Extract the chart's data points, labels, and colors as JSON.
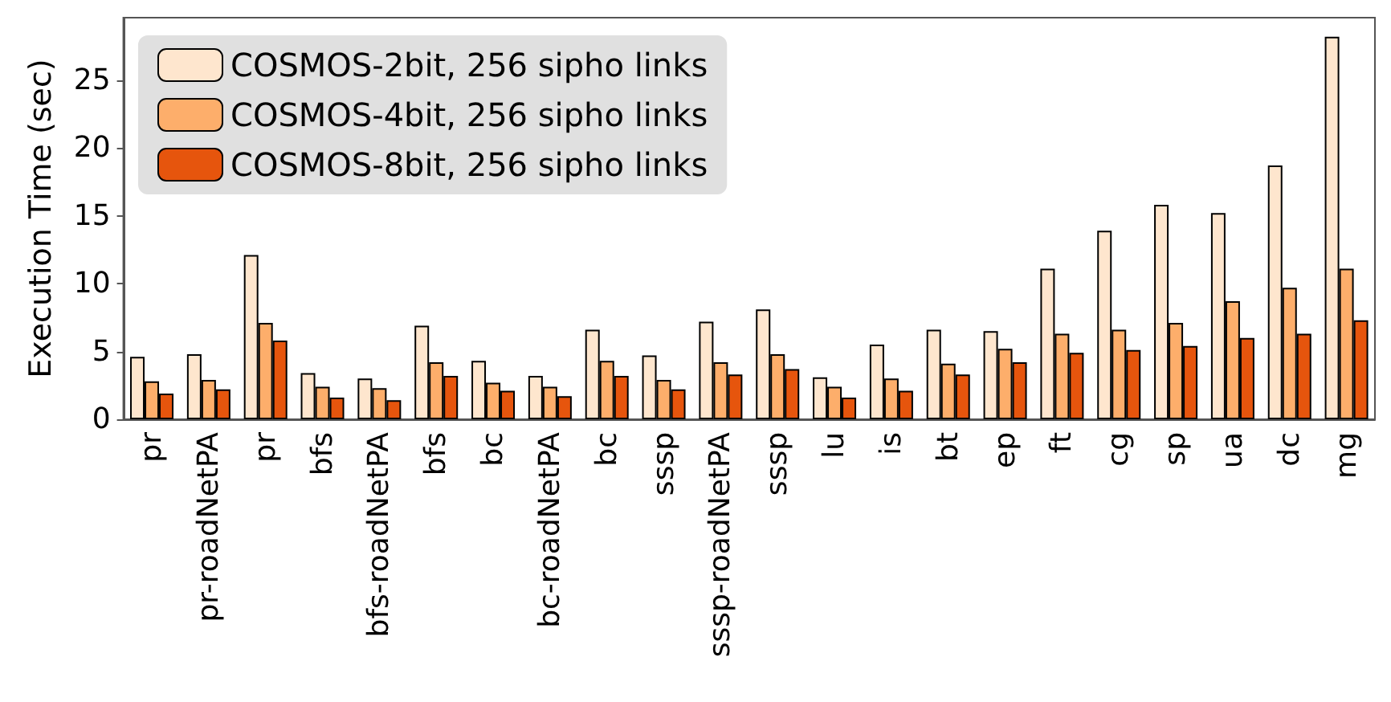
{
  "chart_data": {
    "type": "bar",
    "ylabel": "Execution Time (sec)",
    "categories": [
      "pr",
      "pr-roadNetPA",
      "pr",
      "bfs",
      "bfs-roadNetPA",
      "bfs",
      "bc",
      "bc-roadNetPA",
      "bc",
      "sssp",
      "sssp-roadNetPA",
      "sssp",
      "lu",
      "is",
      "bt",
      "ep",
      "ft",
      "cg",
      "sp",
      "ua",
      "dc",
      "mg"
    ],
    "series": [
      {
        "name": "COSMOS-2bit, 256 sipho links",
        "color": "#fee6ce",
        "values": [
          4.6,
          4.8,
          12.1,
          3.4,
          3.0,
          6.9,
          4.3,
          3.2,
          6.6,
          4.7,
          7.2,
          8.1,
          3.1,
          5.5,
          6.6,
          6.5,
          11.1,
          13.9,
          15.8,
          15.2,
          18.7,
          28.2
        ]
      },
      {
        "name": "COSMOS-4bit, 256 sipho links",
        "color": "#fdae6b",
        "values": [
          2.8,
          2.9,
          7.1,
          2.4,
          2.3,
          4.2,
          2.7,
          2.4,
          4.3,
          2.9,
          4.2,
          4.8,
          2.4,
          3.0,
          4.1,
          5.2,
          6.3,
          6.6,
          7.1,
          8.7,
          9.7,
          11.1
        ]
      },
      {
        "name": "COSMOS-8bit, 256 sipho links",
        "color": "#e6550d",
        "values": [
          1.9,
          2.2,
          5.8,
          1.6,
          1.4,
          3.2,
          2.1,
          1.7,
          3.2,
          2.2,
          3.3,
          3.7,
          1.6,
          2.1,
          3.3,
          4.2,
          4.9,
          5.1,
          5.4,
          6.0,
          6.3,
          7.3
        ]
      }
    ],
    "ylim": [
      0,
      29.6
    ],
    "yticks": [
      0,
      5,
      10,
      15,
      20,
      25
    ],
    "grid": false,
    "legend": "top left"
  }
}
